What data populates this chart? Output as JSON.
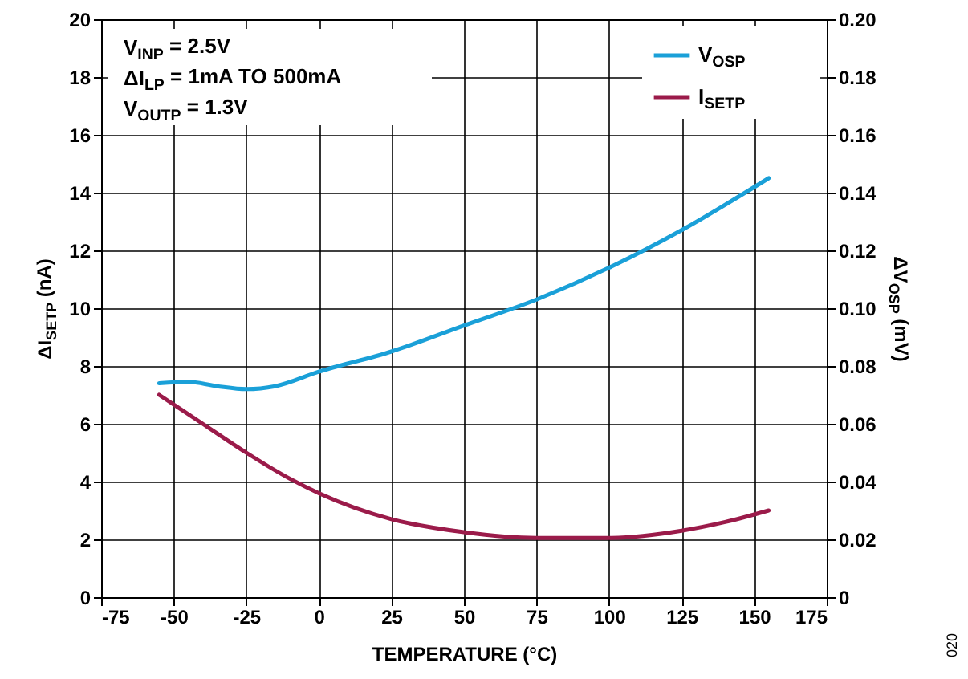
{
  "chart_data": {
    "type": "line",
    "xlabel": "TEMPERATURE (°C)",
    "ylabel": "ΔI$_{SETP}$ (nA)",
    "y2label": "ΔV$_{OSP}$ (mV)",
    "annotations": [
      "V$_{INP}$ = 2.5V",
      "ΔI$_{LP}$ = 1mA TO 500mA",
      "V$_{OUTP}$ = 1.3V",
      "020"
    ],
    "xlim": [
      -75,
      175
    ],
    "xticks": [
      -75,
      -50,
      -25,
      0,
      25,
      50,
      75,
      100,
      125,
      150,
      175
    ],
    "ylim": [
      0,
      20
    ],
    "yticks": [
      0,
      2,
      4,
      6,
      8,
      10,
      12,
      14,
      16,
      18,
      20
    ],
    "y2lim": [
      0,
      0.2
    ],
    "y2ticks": [
      0,
      {
        "value": 0.02,
        "label": "0.02"
      },
      {
        "value": 0.04,
        "label": "0.04"
      },
      {
        "value": 0.06,
        "label": "0.06"
      },
      {
        "value": 0.08,
        "label": "0.08"
      },
      {
        "value": 0.1,
        "label": "0.10"
      },
      {
        "value": 0.12,
        "label": "0.12"
      },
      {
        "value": 0.14,
        "label": "0.14"
      },
      {
        "value": 0.16,
        "label": "0.16"
      },
      {
        "value": 0.18,
        "label": "0.18"
      },
      {
        "value": 0.2,
        "label": "0.20"
      }
    ],
    "grid": true,
    "legend": "top right",
    "marker": "none",
    "line_style": "solid",
    "series": [
      {
        "name": "V$_{OSP}$",
        "color": "#1aa0d8",
        "axis": "y2",
        "x": [
          -55,
          -45,
          -35,
          -25,
          -15,
          0,
          25,
          50,
          75,
          100,
          125,
          155
        ],
        "values": [
          0.074,
          0.0745,
          0.073,
          0.072,
          0.073,
          0.078,
          0.085,
          0.094,
          0.103,
          0.114,
          0.127,
          0.145
        ]
      },
      {
        "name": "I$_{SETP}$",
        "color": "#9b1b4a",
        "x": [
          -55,
          -40,
          -25,
          -10,
          0,
          25,
          50,
          75,
          100,
          125,
          140,
          155
        ],
        "values": [
          7.0,
          6.0,
          5.0,
          4.1,
          3.6,
          2.7,
          2.25,
          2.05,
          2.05,
          2.3,
          2.6,
          3.0
        ]
      }
    ]
  }
}
